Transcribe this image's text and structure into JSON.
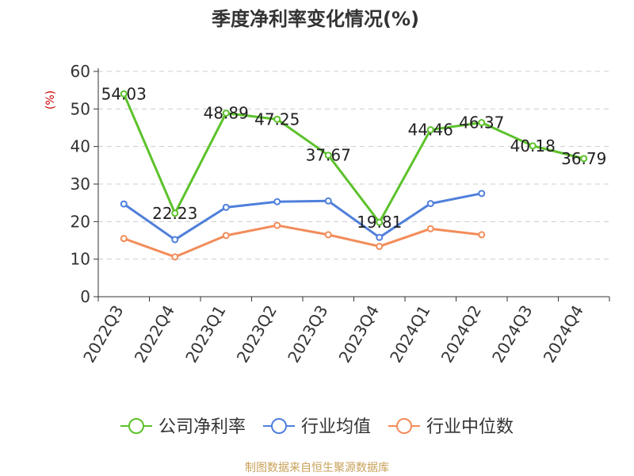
{
  "chart_data": {
    "type": "line",
    "title": "季度净利率变化情况(%)",
    "ylabel": "(%)",
    "xlabel": "",
    "ylim": [
      0,
      60
    ],
    "yticks": [
      0,
      10,
      20,
      30,
      40,
      50,
      60
    ],
    "grid": true,
    "legend_position": "bottom",
    "categories": [
      "2022Q3",
      "2022Q4",
      "2023Q1",
      "2023Q2",
      "2023Q3",
      "2023Q4",
      "2024Q1",
      "2024Q2",
      "2024Q3",
      "2024Q4"
    ],
    "series": [
      {
        "name": "公司净利率",
        "color": "#5cc22b",
        "values": [
          54.03,
          22.23,
          48.89,
          47.25,
          37.67,
          19.81,
          44.46,
          46.37,
          40.18,
          36.79
        ],
        "labels": [
          "54.03",
          "22.23",
          "48.89",
          "47.25",
          "37.67",
          "19.81",
          "44.46",
          "46.37",
          "40.18",
          "36.79"
        ]
      },
      {
        "name": "行业均值",
        "color": "#4f7fdb",
        "values": [
          24.7,
          15.2,
          23.8,
          25.3,
          25.5,
          15.8,
          24.8,
          27.5,
          null,
          null
        ]
      },
      {
        "name": "行业中位数",
        "color": "#f28c5a",
        "values": [
          15.5,
          10.6,
          16.3,
          19.0,
          16.5,
          13.4,
          18.1,
          16.5,
          null,
          null
        ]
      }
    ]
  },
  "source": "制图数据来自恒生聚源数据库",
  "colors": {
    "title": "#333333",
    "axis": "#333333",
    "grid": "#cccccc",
    "ylabel": "#cc0000",
    "source": "#c8a15a"
  }
}
